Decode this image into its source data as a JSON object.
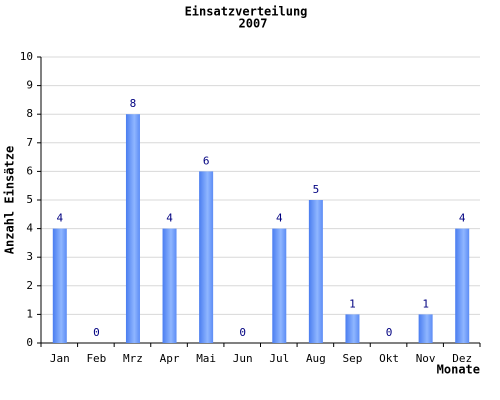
{
  "chart_data": {
    "type": "bar",
    "title": "Einsatzverteilung",
    "subtitle": "2007",
    "x_label": "Monate",
    "y_label": "Anzahl Einsätze",
    "categories": [
      "Jan",
      "Feb",
      "Mrz",
      "Apr",
      "Mai",
      "Jun",
      "Jul",
      "Aug",
      "Sep",
      "Okt",
      "Nov",
      "Dez"
    ],
    "values": [
      4,
      0,
      8,
      4,
      6,
      0,
      4,
      5,
      1,
      0,
      1,
      4
    ],
    "color": "#6699ff",
    "ylim": [
      0,
      10
    ],
    "yticks": [
      0,
      1,
      2,
      3,
      4,
      5,
      6,
      7,
      8,
      9,
      10
    ],
    "grid": true
  }
}
